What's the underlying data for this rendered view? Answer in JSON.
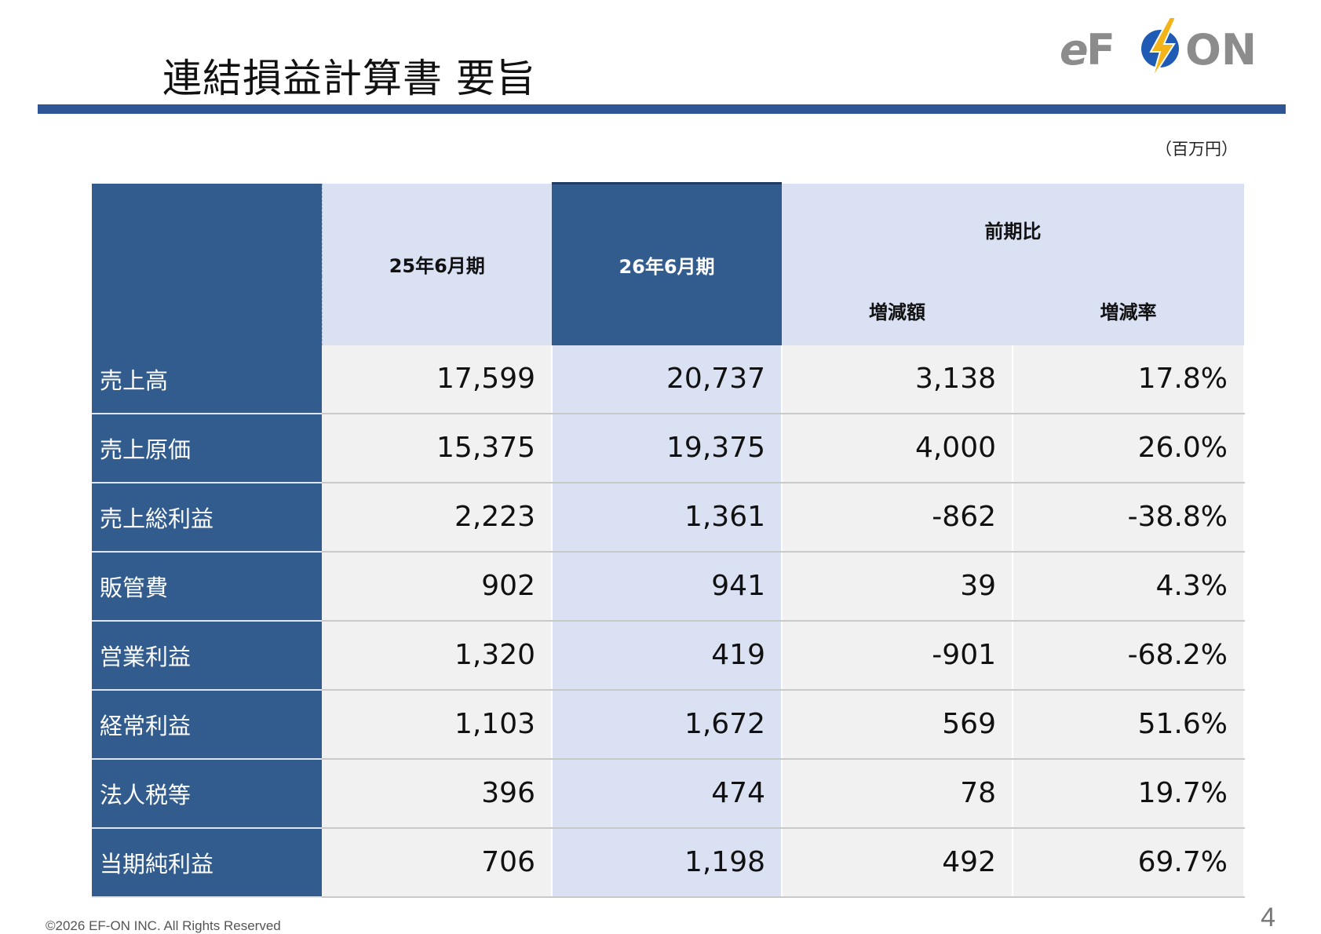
{
  "title": "連結損益計算書 要旨",
  "logo": {
    "text": "eFON",
    "icon": "lightning-bolt-icon",
    "accent_color": "#1f5bb5",
    "bolt_color": "#f5b31a",
    "text_color": "#8c8c8c"
  },
  "unit": "（百万円）",
  "table": {
    "headers": {
      "prev": "25年6月期",
      "curr": "26年6月期",
      "comparison": "前期比",
      "diff": "増減額",
      "rate": "増減率"
    },
    "rows": [
      {
        "label": "売上高",
        "prev": "17,599",
        "curr": "20,737",
        "diff": "3,138",
        "rate": "17.8%"
      },
      {
        "label": "売上原価",
        "prev": "15,375",
        "curr": "19,375",
        "diff": "4,000",
        "rate": "26.0%"
      },
      {
        "label": "売上総利益",
        "prev": "2,223",
        "curr": "1,361",
        "diff": "-862",
        "rate": "-38.8%"
      },
      {
        "label": "販管費",
        "prev": "902",
        "curr": "941",
        "diff": "39",
        "rate": "4.3%"
      },
      {
        "label": "営業利益",
        "prev": "1,320",
        "curr": "419",
        "diff": "-901",
        "rate": "-68.2%"
      },
      {
        "label": "経常利益",
        "prev": "1,103",
        "curr": "1,672",
        "diff": "569",
        "rate": "51.6%"
      },
      {
        "label": "法人税等",
        "prev": "396",
        "curr": "474",
        "diff": "78",
        "rate": "19.7%"
      },
      {
        "label": "当期純利益",
        "prev": "706",
        "curr": "1,198",
        "diff": "492",
        "rate": "69.7%"
      }
    ]
  },
  "footer": "©2026  EF-ON INC.  All Rights Reserved",
  "page_number": "4",
  "colors": {
    "header_dark": "#335c8e",
    "header_light": "#dae1f3",
    "rule": "#2f5597",
    "cell": "#f1f1f1"
  }
}
